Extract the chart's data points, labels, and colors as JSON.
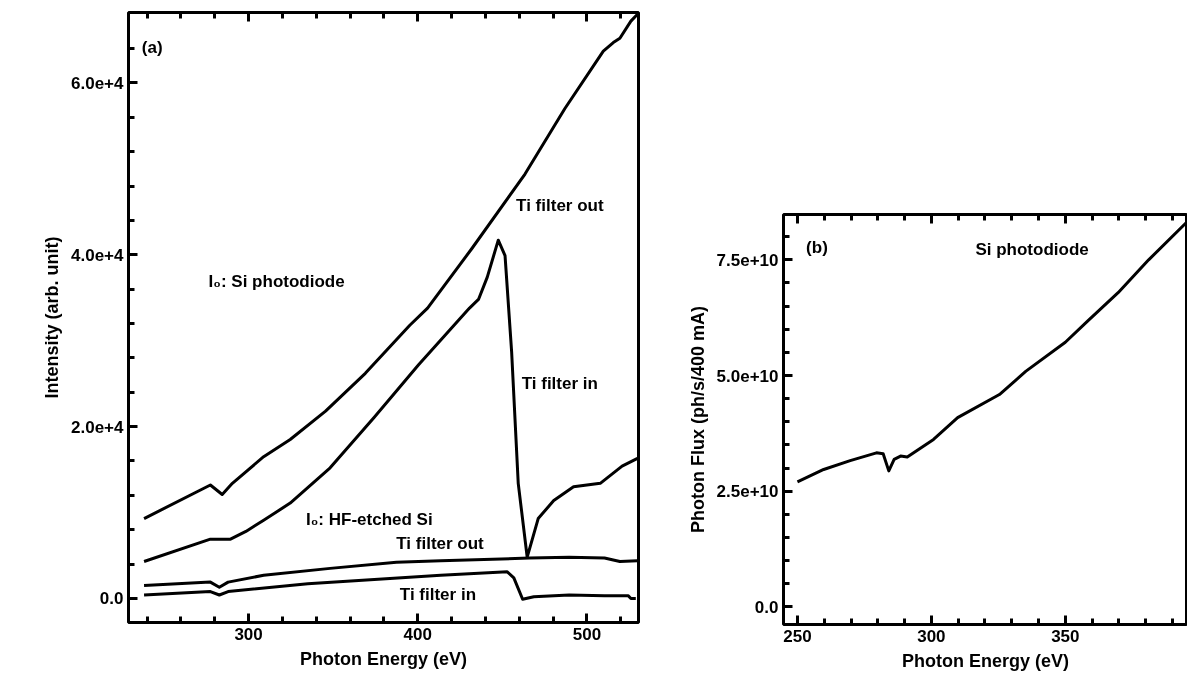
{
  "chart_data": [
    {
      "type": "line",
      "xlabel": "Photon Energy (eV)",
      "ylabel": "Intensity (arb. unit)",
      "xlim": [
        229,
        530.5
      ],
      "ylim": [
        -2800,
        68200
      ],
      "xticks": [
        300,
        400,
        500,
        {
          "value": 240,
          "label": null
        },
        {
          "value": 260,
          "label": null
        },
        {
          "value": 280,
          "label": null
        },
        {
          "value": 320,
          "label": null
        },
        {
          "value": 340,
          "label": null
        },
        {
          "value": 360,
          "label": null
        },
        {
          "value": 380,
          "label": null
        },
        {
          "value": 420,
          "label": null
        },
        {
          "value": 440,
          "label": null
        },
        {
          "value": 460,
          "label": null
        },
        {
          "value": 480,
          "label": null
        },
        {
          "value": 520,
          "label": null
        }
      ],
      "yticks": [
        {
          "value": 0,
          "label": "0.0"
        },
        {
          "value": 20000,
          "label": "2.0e+4"
        },
        {
          "value": 40000,
          "label": "4.0e+4"
        },
        {
          "value": 60000,
          "label": "6.0e+4"
        },
        {
          "value": 4000,
          "label": null
        },
        {
          "value": 8000,
          "label": null
        },
        {
          "value": 12000,
          "label": null
        },
        {
          "value": 16000,
          "label": null
        },
        {
          "value": 24000,
          "label": null
        },
        {
          "value": 28000,
          "label": null
        },
        {
          "value": 32000,
          "label": null
        },
        {
          "value": 36000,
          "label": null
        },
        {
          "value": 44000,
          "label": null
        },
        {
          "value": 48000,
          "label": null
        },
        {
          "value": 52000,
          "label": null
        },
        {
          "value": 56000,
          "label": null
        },
        {
          "value": 64000,
          "label": null
        }
      ],
      "series": [
        {
          "color": "#000000",
          "x": [
            238.2,
            277.4,
            284.4,
            290.4,
            308.9,
            324.6,
            345.5,
            369,
            395.3,
            405.8,
            431.9,
            463.4,
            486.9,
            509.7,
            515.6,
            519.5,
            526.0,
            529.9
          ],
          "values": [
            9300,
            13200,
            12100,
            13400,
            16500,
            18500,
            21800,
            26200,
            31800,
            33800,
            40700,
            49400,
            57000,
            63700,
            64700,
            65200,
            67200,
            68000
          ]
        },
        {
          "color": "#000000",
          "x": [
            238.2,
            277.4,
            289.3,
            298.4,
            308.9,
            324.6,
            348.2,
            374.3,
            400.5,
            430.6,
            435.9,
            441.1,
            447.6,
            451.6,
            455.5,
            459.4,
            464.7,
            471.2,
            480.4,
            492.1,
            507.9,
            520.8,
            529.9
          ],
          "values": [
            4300,
            6900,
            6900,
            7800,
            9100,
            11100,
            15200,
            21100,
            27200,
            33800,
            34800,
            37400,
            41700,
            39900,
            28700,
            13400,
            4800,
            9300,
            11400,
            13000,
            13400,
            15400,
            16300
          ]
        },
        {
          "color": "#000000",
          "x": [
            238.2,
            277.4,
            282.7,
            287.9,
            308.9,
            348.2,
            387.4,
            413.6,
            466,
            489.5,
            510.4,
            519.5,
            529.9
          ],
          "values": [
            1500,
            1900,
            1300,
            1900,
            2700,
            3500,
            4200,
            4400,
            4700,
            4800,
            4700,
            4300,
            4400
          ]
        },
        {
          "color": "#000000",
          "x": [
            238.2,
            277.4,
            282.7,
            287.9,
            335,
            413.6,
            452.9,
            456.8,
            462,
            468.6,
            489.5,
            510.4,
            524.5,
            526.0,
            528.9
          ],
          "values": [
            400,
            800,
            400,
            800,
            1700,
            2700,
            3100,
            2400,
            -100,
            200,
            400,
            300,
            300,
            0,
            0
          ]
        }
      ],
      "annotations": [
        "(a)",
        "I₀: Si photodiode",
        "Ti filter out",
        "Ti filter in",
        "I₀: HF-etched Si",
        "Ti filter out",
        "Ti filter in"
      ]
    },
    {
      "type": "line",
      "xlabel": "Photon Energy (eV)",
      "ylabel": "Photon Flux (ph/s/400 mA)",
      "xlim": [
        244.8,
        395.6
      ],
      "ylim": [
        -3800000000.0,
        84800000000.0
      ],
      "xticks": [
        250,
        300,
        350,
        {
          "value": 260,
          "label": null
        },
        {
          "value": 270,
          "label": null
        },
        {
          "value": 280,
          "label": null
        },
        {
          "value": 290,
          "label": null
        },
        {
          "value": 310,
          "label": null
        },
        {
          "value": 320,
          "label": null
        },
        {
          "value": 330,
          "label": null
        },
        {
          "value": 340,
          "label": null
        },
        {
          "value": 360,
          "label": null
        },
        {
          "value": 370,
          "label": null
        },
        {
          "value": 380,
          "label": null
        },
        {
          "value": 390,
          "label": null
        }
      ],
      "yticks": [
        {
          "value": 0,
          "label": "0.0"
        },
        {
          "value": 25000000000,
          "label": "2.5e+10"
        },
        {
          "value": 50000000000,
          "label": "5.0e+10"
        },
        {
          "value": 75000000000,
          "label": "7.5e+10"
        },
        {
          "value": 5000000000,
          "label": null
        },
        {
          "value": 10000000000,
          "label": null
        },
        {
          "value": 15000000000,
          "label": null
        },
        {
          "value": 20000000000,
          "label": null
        },
        {
          "value": 30000000000,
          "label": null
        },
        {
          "value": 35000000000,
          "label": null
        },
        {
          "value": 40000000000,
          "label": null
        },
        {
          "value": 45000000000,
          "label": null
        },
        {
          "value": 55000000000,
          "label": null
        },
        {
          "value": 60000000000,
          "label": null
        },
        {
          "value": 65000000000,
          "label": null
        },
        {
          "value": 70000000000,
          "label": null
        },
        {
          "value": 80000000000,
          "label": null
        }
      ],
      "series": [
        {
          "color": "#000000",
          "x": [
            250,
            259.8,
            269.7,
            279.5,
            282,
            284.1,
            286.1,
            288.5,
            291,
            300.8,
            309.8,
            325.4,
            335.2,
            350,
            358.2,
            369.7,
            381.1,
            395.1
          ],
          "values": [
            27000000000.0,
            29700000000.0,
            31600000000.0,
            33300000000.0,
            33100000000.0,
            29400000000.0,
            31900000000.0,
            32600000000.0,
            32400000000.0,
            36200000000.0,
            40900000000.0,
            45900000000.0,
            50900000000.0,
            57200000000.0,
            61700000000.0,
            67900000000.0,
            75000000000.0,
            83000000000.0
          ]
        }
      ],
      "annotations": [
        "(b)",
        "Si photodiode"
      ]
    }
  ]
}
